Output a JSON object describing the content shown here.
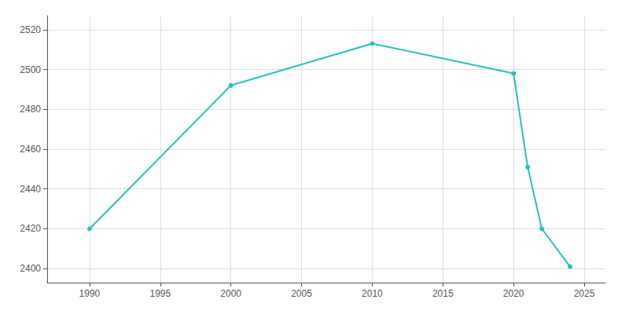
{
  "chart_data": {
    "type": "line",
    "x": [
      1990,
      2000,
      2010,
      2020,
      2021,
      2022,
      2024
    ],
    "values": [
      2420,
      2492,
      2513,
      2498,
      2451,
      2420,
      2401
    ],
    "color": "#2abfbf",
    "marker": "circle",
    "xlim": [
      1987,
      2026.5
    ],
    "xticks": [
      1990,
      1995,
      2000,
      2005,
      2010,
      2015,
      2020,
      2025
    ],
    "ylim": [
      2393,
      2527
    ],
    "yticks": [
      2400,
      2420,
      2440,
      2460,
      2480,
      2500,
      2520
    ],
    "grid": true
  }
}
